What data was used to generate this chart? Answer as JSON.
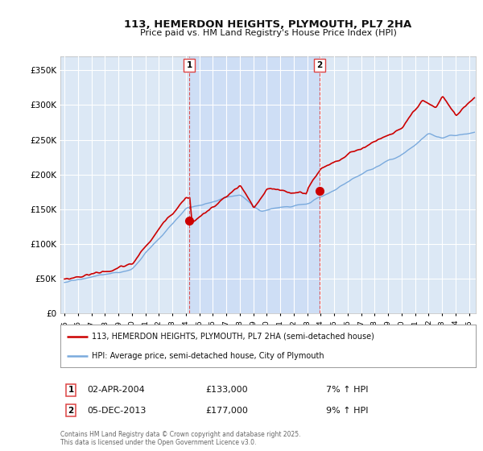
{
  "title": "113, HEMERDON HEIGHTS, PLYMOUTH, PL7 2HA",
  "subtitle": "Price paid vs. HM Land Registry's House Price Index (HPI)",
  "legend_label_red": "113, HEMERDON HEIGHTS, PLYMOUTH, PL7 2HA (semi-detached house)",
  "legend_label_blue": "HPI: Average price, semi-detached house, City of Plymouth",
  "footnote": "Contains HM Land Registry data © Crown copyright and database right 2025.\nThis data is licensed under the Open Government Licence v3.0.",
  "purchase1_date": "02-APR-2004",
  "purchase1_price": 133000,
  "purchase1_label": "7% ↑ HPI",
  "purchase2_date": "05-DEC-2013",
  "purchase2_price": 177000,
  "purchase2_label": "9% ↑ HPI",
  "purchase1_year": 2004.25,
  "purchase2_year": 2013.92,
  "ylim": [
    0,
    370000
  ],
  "yticks": [
    0,
    50000,
    100000,
    150000,
    200000,
    250000,
    300000,
    350000
  ],
  "ytick_labels": [
    "£0",
    "£50K",
    "£100K",
    "£150K",
    "£200K",
    "£250K",
    "£300K",
    "£350K"
  ],
  "color_red": "#cc0000",
  "color_blue": "#7aaadd",
  "color_dashed": "#dd4444",
  "background_plot": "#dce8f5",
  "background_fig": "#ffffff",
  "shade_color": "#ccddf5",
  "grid_color": "#ffffff",
  "xlim": [
    1994.7,
    2025.5
  ]
}
